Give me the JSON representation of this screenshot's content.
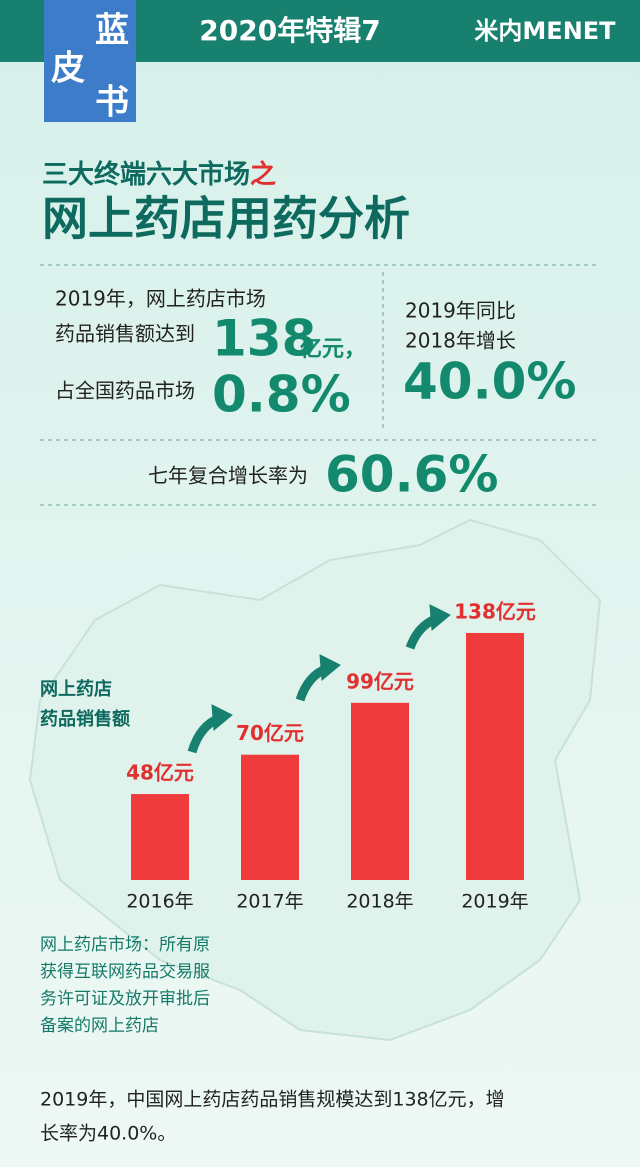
{
  "header": {
    "logo": [
      "蓝",
      "皮",
      "书"
    ],
    "issue": "2020年特辑7",
    "brand": "米内MENET"
  },
  "headline": {
    "series_title": "三大终端六大市场",
    "series_accent": "之",
    "title": "网上药店用药分析"
  },
  "stats": {
    "sales_line1": "2019年，网上药店市场",
    "sales_line2": "药品销售额达到",
    "sales_value": "138",
    "sales_unit": "亿元，",
    "share_label": "占全国药品市场",
    "share_value": "0.8%",
    "growth_line1": "2019年同比",
    "growth_line2": "2018年增长",
    "growth_value": "40.0%",
    "cagr_label": "七年复合增长率为",
    "cagr_value": "60.6%"
  },
  "chart_data": {
    "type": "bar",
    "title": [
      "网上药店",
      "药品销售额"
    ],
    "categories": [
      "2016年",
      "2017年",
      "2018年",
      "2019年"
    ],
    "values": [
      48,
      70,
      99,
      138
    ],
    "value_labels": [
      "48亿元",
      "70亿元",
      "99亿元",
      "138亿元"
    ],
    "color": "#ef3b3b"
  },
  "note": {
    "lines": [
      "网上药店市场：所有原",
      "获得互联网药品交易服",
      "务许可证及放开审批后",
      "备案的网上药店"
    ]
  },
  "caption": {
    "lines": [
      "2019年，中国网上药店药品销售规模达到138亿元，增",
      "长率为40.0%。"
    ]
  }
}
